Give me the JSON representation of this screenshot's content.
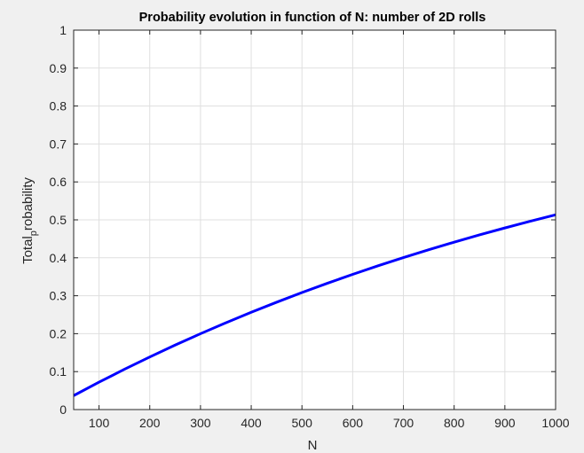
{
  "chart_data": {
    "type": "line",
    "title": "Probability evolution in function of N: number of 2D rolls",
    "xlabel": "N",
    "ylabel": "Total_probability",
    "ylabel_parts": {
      "main": "Total",
      "sub": "p",
      "rest": "robability"
    },
    "xlim": [
      50,
      1000
    ],
    "ylim": [
      0,
      1
    ],
    "xticks": [
      100,
      200,
      300,
      400,
      500,
      600,
      700,
      800,
      900,
      1000
    ],
    "yticks": [
      0,
      0.1,
      0.2,
      0.3,
      0.4,
      0.5,
      0.6,
      0.7,
      0.8,
      0.9,
      1
    ],
    "grid": true,
    "line_color": "#0000ff",
    "series": [
      {
        "x": [
          50,
          100,
          150,
          200,
          250,
          300,
          350,
          400,
          450,
          500,
          550,
          600,
          650,
          700,
          750,
          800,
          850,
          900,
          950,
          1000
        ],
        "y": [
          0.0368,
          0.0722,
          0.1061,
          0.1386,
          0.1699,
          0.1999,
          0.2287,
          0.2564,
          0.2829,
          0.3084,
          0.3328,
          0.3563,
          0.3789,
          0.4005,
          0.4213,
          0.4412,
          0.4604,
          0.4787,
          0.4964,
          0.5133
        ]
      }
    ]
  }
}
